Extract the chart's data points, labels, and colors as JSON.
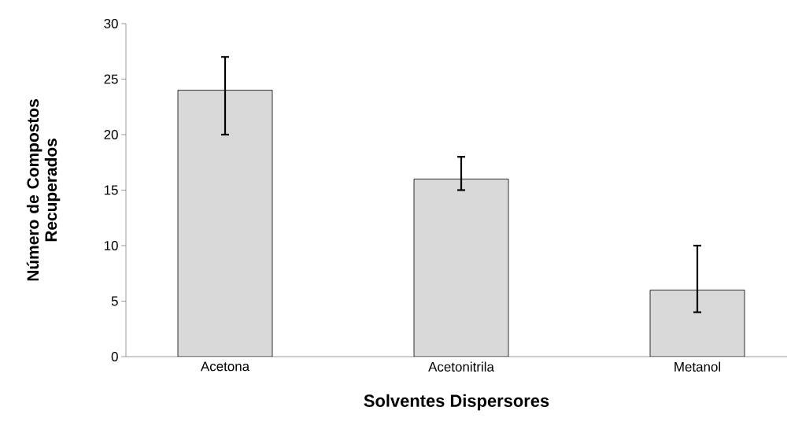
{
  "chart_data": {
    "type": "bar",
    "xlabel": "Solventes Dispersores",
    "ylabel": "Número de Compostos Recuperados",
    "categories": [
      "Acetona",
      "Acetonitrila",
      "Metanol"
    ],
    "values": [
      24,
      16,
      6
    ],
    "errors": [
      [
        20,
        27
      ],
      [
        15,
        18
      ],
      [
        4,
        10
      ]
    ],
    "color": "#d9d9d9",
    "ylim": [
      0,
      30
    ],
    "yticks": [
      0,
      5,
      10,
      15,
      20,
      25,
      30
    ],
    "grid": false
  }
}
